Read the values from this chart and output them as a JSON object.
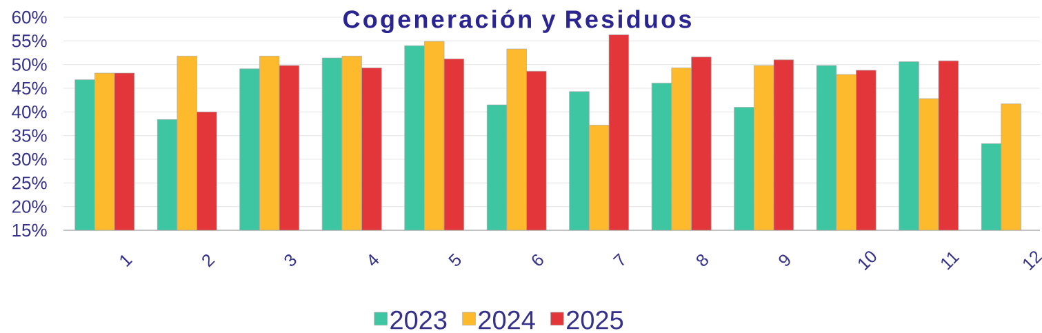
{
  "chart_data": {
    "type": "bar",
    "title": "Cogeneración y Residuos",
    "categories": [
      "1",
      "2",
      "3",
      "4",
      "5",
      "6",
      "7",
      "8",
      "9",
      "10",
      "11",
      "12"
    ],
    "series": [
      {
        "name": "2023",
        "color": "#3ec5a2",
        "values": [
          46.8,
          38.4,
          49.1,
          51.4,
          54.0,
          41.5,
          44.3,
          46.1,
          41.0,
          49.8,
          50.6,
          33.3
        ]
      },
      {
        "name": "2024",
        "color": "#fcba2c",
        "values": [
          48.2,
          51.8,
          51.8,
          51.8,
          54.9,
          53.3,
          37.2,
          49.3,
          49.8,
          47.9,
          42.8,
          41.7
        ]
      },
      {
        "name": "2025",
        "color": "#e2363a",
        "values": [
          48.2,
          40.0,
          49.8,
          49.3,
          51.2,
          48.6,
          56.3,
          51.6,
          51.0,
          48.8,
          50.8,
          null
        ]
      }
    ],
    "ylim": [
      15,
      60
    ],
    "yticks": [
      {
        "value": 15,
        "label": "15%"
      },
      {
        "value": 20,
        "label": "20%"
      },
      {
        "value": 25,
        "label": "25%"
      },
      {
        "value": 30,
        "label": "30%"
      },
      {
        "value": 35,
        "label": "35%"
      },
      {
        "value": 40,
        "label": "40%"
      },
      {
        "value": 45,
        "label": "45%"
      },
      {
        "value": 50,
        "label": "50%"
      },
      {
        "value": 55,
        "label": "55%"
      },
      {
        "value": 60,
        "label": "60%"
      }
    ],
    "grid": "y",
    "legend": "bottom"
  }
}
